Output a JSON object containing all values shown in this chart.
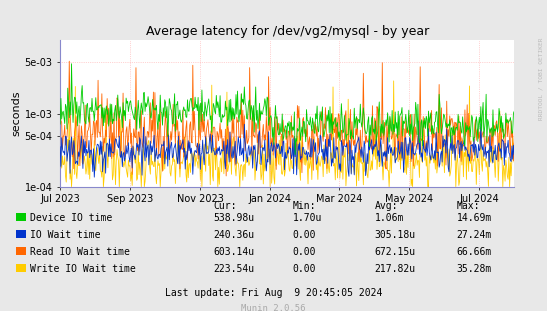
{
  "title": "Average latency for /dev/vg2/mysql - by year",
  "ylabel": "seconds",
  "bg_color": "#e8e8e8",
  "plot_bg_color": "#ffffff",
  "grid_color": "#ffaaaa",
  "xmin": 0,
  "xmax": 1,
  "ymin": 0.0001,
  "ymax": 0.01,
  "series": [
    {
      "label": "Device IO time",
      "color": "#00cc00"
    },
    {
      "label": "IO Wait time",
      "color": "#0033cc"
    },
    {
      "label": "Read IO Wait time",
      "color": "#ff6600"
    },
    {
      "label": "Write IO Wait time",
      "color": "#ffcc00"
    }
  ],
  "legend_data": [
    {
      "label": "Device IO time",
      "cur": "538.98u",
      "min": "1.70u",
      "avg": "1.06m",
      "max": "14.69m"
    },
    {
      "label": "IO Wait time",
      "cur": "240.36u",
      "min": "0.00",
      "avg": "305.18u",
      "max": "27.24m"
    },
    {
      "label": "Read IO Wait time",
      "cur": "603.14u",
      "min": "0.00",
      "avg": "672.15u",
      "max": "66.66m"
    },
    {
      "label": "Write IO Wait time",
      "cur": "223.54u",
      "min": "0.00",
      "avg": "217.82u",
      "max": "35.28m"
    }
  ],
  "last_update": "Last update: Fri Aug  9 20:45:05 2024",
  "watermark": "Munin 2.0.56",
  "rrdtool_label": "RRDTOOL / TOBI OETIKER",
  "xtick_labels": [
    "Jul 2023",
    "Sep 2023",
    "Nov 2023",
    "Jan 2024",
    "Mar 2024",
    "May 2024",
    "Jul 2024"
  ],
  "xtick_positions": [
    0.0,
    0.154,
    0.308,
    0.462,
    0.615,
    0.769,
    0.923
  ],
  "ytick_labels": [
    "1e-04",
    "5e-04",
    "1e-03",
    "5e-03"
  ],
  "ytick_values": [
    0.0001,
    0.0005,
    0.001,
    0.005
  ]
}
